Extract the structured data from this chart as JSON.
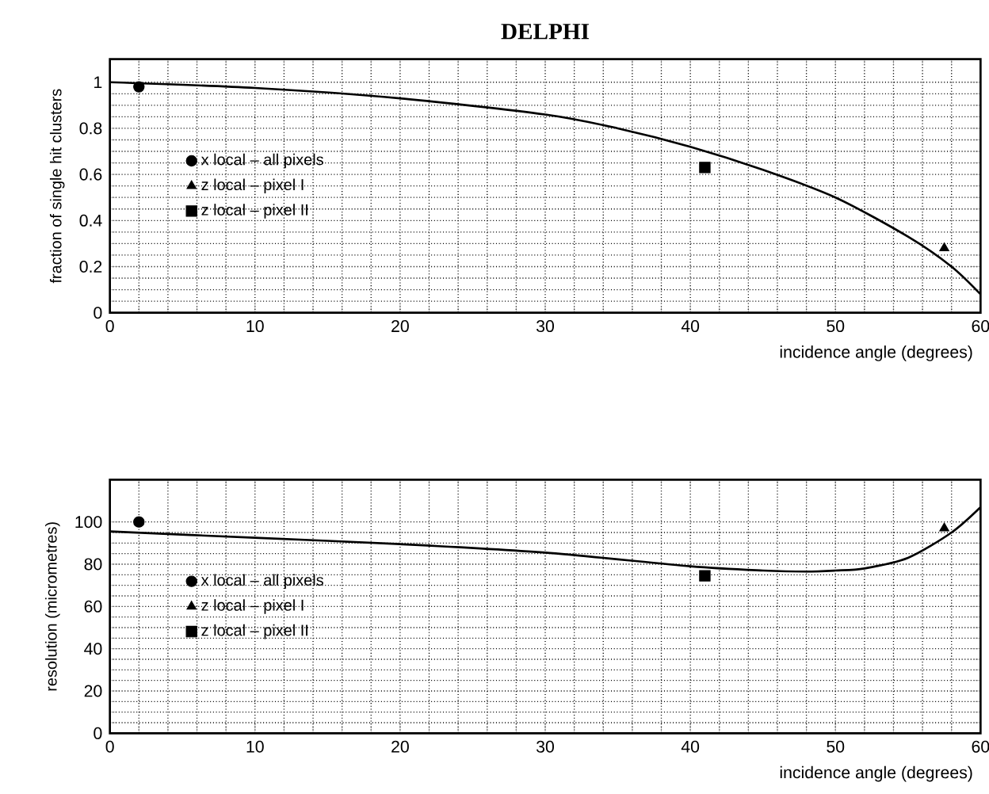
{
  "chart_data": [
    {
      "type": "scatter",
      "title": "DELPHI",
      "xlabel": "incidence angle (degrees)",
      "ylabel": "fraction of single hit clusters",
      "xlim": [
        0,
        60
      ],
      "ylim": [
        0,
        1.1
      ],
      "xticks": [
        0,
        10,
        20,
        30,
        40,
        50,
        60
      ],
      "yticks": [
        0,
        0.2,
        0.4,
        0.6,
        0.8,
        1
      ],
      "grid": true,
      "legend": "left",
      "series": [
        {
          "name": "x local – all pixels",
          "color": "#000000",
          "marker": "circle",
          "x": [
            2
          ],
          "values": [
            0.98
          ]
        },
        {
          "name": "z local – pixel I",
          "color": "#000000",
          "marker": "triangle",
          "x": [
            57.5
          ],
          "values": [
            0.28
          ]
        },
        {
          "name": "z local – pixel II",
          "color": "#000000",
          "marker": "square",
          "x": [
            41
          ],
          "values": [
            0.63
          ]
        },
        {
          "type": "line",
          "color": "#000000",
          "marker": "none",
          "line_style": "solid",
          "x": [
            0,
            10,
            20,
            30,
            35,
            40,
            45,
            50,
            55,
            58,
            60
          ],
          "values": [
            1.0,
            0.975,
            0.93,
            0.86,
            0.8,
            0.72,
            0.62,
            0.5,
            0.33,
            0.2,
            0.08
          ]
        }
      ]
    },
    {
      "type": "scatter",
      "xlabel": "incidence angle (degrees)",
      "ylabel": "resolution (micrometres)",
      "xlim": [
        0,
        60
      ],
      "ylim": [
        0,
        120
      ],
      "xticks": [
        0,
        10,
        20,
        30,
        40,
        50,
        60
      ],
      "yticks": [
        0,
        20,
        40,
        60,
        80,
        100
      ],
      "grid": true,
      "legend": "left",
      "series": [
        {
          "name": "x local – all pixels",
          "color": "#000000",
          "marker": "circle",
          "x": [
            2
          ],
          "values": [
            100
          ]
        },
        {
          "name": "z local – pixel I",
          "color": "#000000",
          "marker": "triangle",
          "x": [
            57.5
          ],
          "values": [
            97
          ]
        },
        {
          "name": "z local – pixel II",
          "color": "#000000",
          "marker": "square",
          "x": [
            41
          ],
          "values": [
            74.5
          ]
        },
        {
          "type": "line",
          "color": "#000000",
          "marker": "none",
          "line_style": "solid",
          "x": [
            0,
            10,
            20,
            30,
            40,
            45,
            48,
            50,
            52,
            55,
            58,
            60
          ],
          "values": [
            95.5,
            92.5,
            89.5,
            85.5,
            79,
            77,
            76.5,
            77,
            78,
            83,
            95,
            107
          ]
        }
      ]
    }
  ]
}
